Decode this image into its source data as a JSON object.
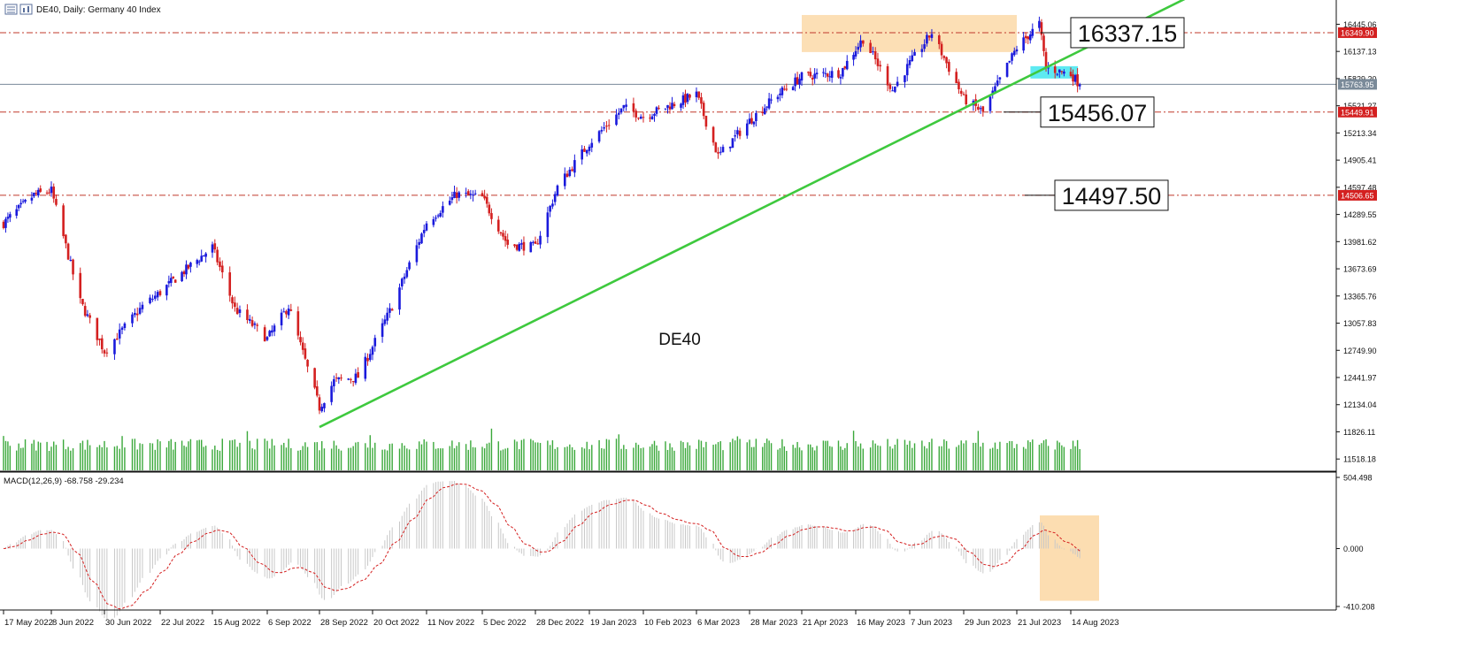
{
  "header": {
    "symbol": "DE40",
    "timeframe": "Daily",
    "description": "Germany 40 Index",
    "title_text": "DE40, Daily:  Germany 40 Index"
  },
  "colors": {
    "bull": "#1a1adc",
    "bear": "#d42020",
    "volume": "#3aa83a",
    "trendline": "#3ec93e",
    "level_line": "#c0392b",
    "price_line": "#7a8a99",
    "zone": "#fcd9a8",
    "highlight": "#4de8f0",
    "macd_hist": "#c8c8c8",
    "macd_signal": "#d42020"
  },
  "chart_data": {
    "type": "candlestick",
    "symbol": "DE40",
    "watermark": "DE40",
    "ylim": [
      11390,
      16720
    ],
    "price_ticks": [
      "16445.06",
      "16137.13",
      "15829.20",
      "15521.27",
      "15213.34",
      "14905.41",
      "14597.48",
      "14289.55",
      "13981.62",
      "13673.69",
      "13365.76",
      "13057.83",
      "12749.90",
      "12441.97",
      "12134.04",
      "11826.11",
      "11518.18"
    ],
    "date_labels": [
      "17 May 2022",
      "8 Jun 2022",
      "30 Jun 2022",
      "22 Jul 2022",
      "15 Aug 2022",
      "6 Sep 2022",
      "28 Sep 2022",
      "20 Oct 2022",
      "11 Nov 2022",
      "5 Dec 2022",
      "28 Dec 2022",
      "19 Jan 2023",
      "10 Feb 2023",
      "6 Mar 2023",
      "28 Mar 2023",
      "21 Apr 2023",
      "16 May 2023",
      "7 Jun 2023",
      "29 Jun 2023",
      "21 Jul 2023",
      "14 Aug 2023"
    ],
    "close_path": [
      [
        "17 May 2022",
        14190
      ],
      [
        "31 May 2022",
        14510
      ],
      [
        "8 Jun 2022",
        14560
      ],
      [
        "20 Jun 2022",
        13300
      ],
      [
        "30 Jun 2022",
        12740
      ],
      [
        "15 Jul 2022",
        13250
      ],
      [
        "27 Jul 2022",
        13520
      ],
      [
        "15 Aug 2022",
        13920
      ],
      [
        "24 Aug 2022",
        13220
      ],
      [
        "6 Sep 2022",
        12880
      ],
      [
        "15 Sep 2022",
        13250
      ],
      [
        "28 Sep 2022",
        12100
      ],
      [
        "4 Oct 2022",
        12400
      ],
      [
        "14 Oct 2022",
        12450
      ],
      [
        "28 Oct 2022",
        13250
      ],
      [
        "11 Nov 2022",
        14200
      ],
      [
        "24 Nov 2022",
        14520
      ],
      [
        "5 Dec 2022",
        14480
      ],
      [
        "16 Dec 2022",
        13950
      ],
      [
        "28 Dec 2022",
        13920
      ],
      [
        "6 Jan 2023",
        14600
      ],
      [
        "19 Jan 2023",
        15100
      ],
      [
        "2 Feb 2023",
        15500
      ],
      [
        "10 Feb 2023",
        15400
      ],
      [
        "6 Mar 2023",
        15650
      ],
      [
        "15 Mar 2023",
        14950
      ],
      [
        "28 Mar 2023",
        15350
      ],
      [
        "10 Apr 2023",
        15650
      ],
      [
        "21 Apr 2023",
        15850
      ],
      [
        "9 May 2023",
        15900
      ],
      [
        "19 May 2023",
        16280
      ],
      [
        "31 May 2023",
        15700
      ],
      [
        "7 Jun 2023",
        16000
      ],
      [
        "16 Jun 2023",
        16350
      ],
      [
        "29 Jun 2023",
        15600
      ],
      [
        "7 Jul 2023",
        15450
      ],
      [
        "21 Jul 2023",
        16180
      ],
      [
        "31 Jul 2023",
        16450
      ],
      [
        "3 Aug 2023",
        15950
      ],
      [
        "14 Aug 2023",
        15880
      ],
      [
        "18 Aug 2023",
        15763.95
      ]
    ],
    "price_lines": [
      {
        "label": "16349.90",
        "value": 16349.9,
        "annotation": "16337.15"
      },
      {
        "label": "15449.91",
        "value": 15449.91,
        "annotation": "15456.07"
      },
      {
        "label": "14506.65",
        "value": 14506.65,
        "annotation": "14497.50"
      }
    ],
    "current_price": {
      "label": "15763.95",
      "value": 15763.95
    },
    "trendline": {
      "from": [
        "28 Sep 2022",
        11880
      ],
      "to": [
        "21 Jul 2023",
        15790
      ]
    },
    "resistance_zone": {
      "x": [
        "21 Apr 2023",
        "21 Jul 2023"
      ],
      "y": [
        16130,
        16550
      ]
    },
    "highlight_zone": {
      "x": [
        "31 Jul 2023",
        "14 Aug 2023"
      ],
      "y": [
        15830,
        15970
      ]
    },
    "volume_present": true,
    "macd": {
      "label": "MACD(12,26,9) -68.758 -29.234",
      "params": [
        12,
        26,
        9
      ],
      "main": -68.758,
      "signal": -29.234,
      "ylim": [
        -410.208,
        504.498
      ],
      "ticks": [
        "504.498",
        "0.000",
        "-410.208"
      ],
      "highlight_zone": {
        "x": [
          "21 Jul 2023",
          "14 Aug 2023"
        ],
        "y": [
          -370,
          235
        ]
      }
    }
  }
}
